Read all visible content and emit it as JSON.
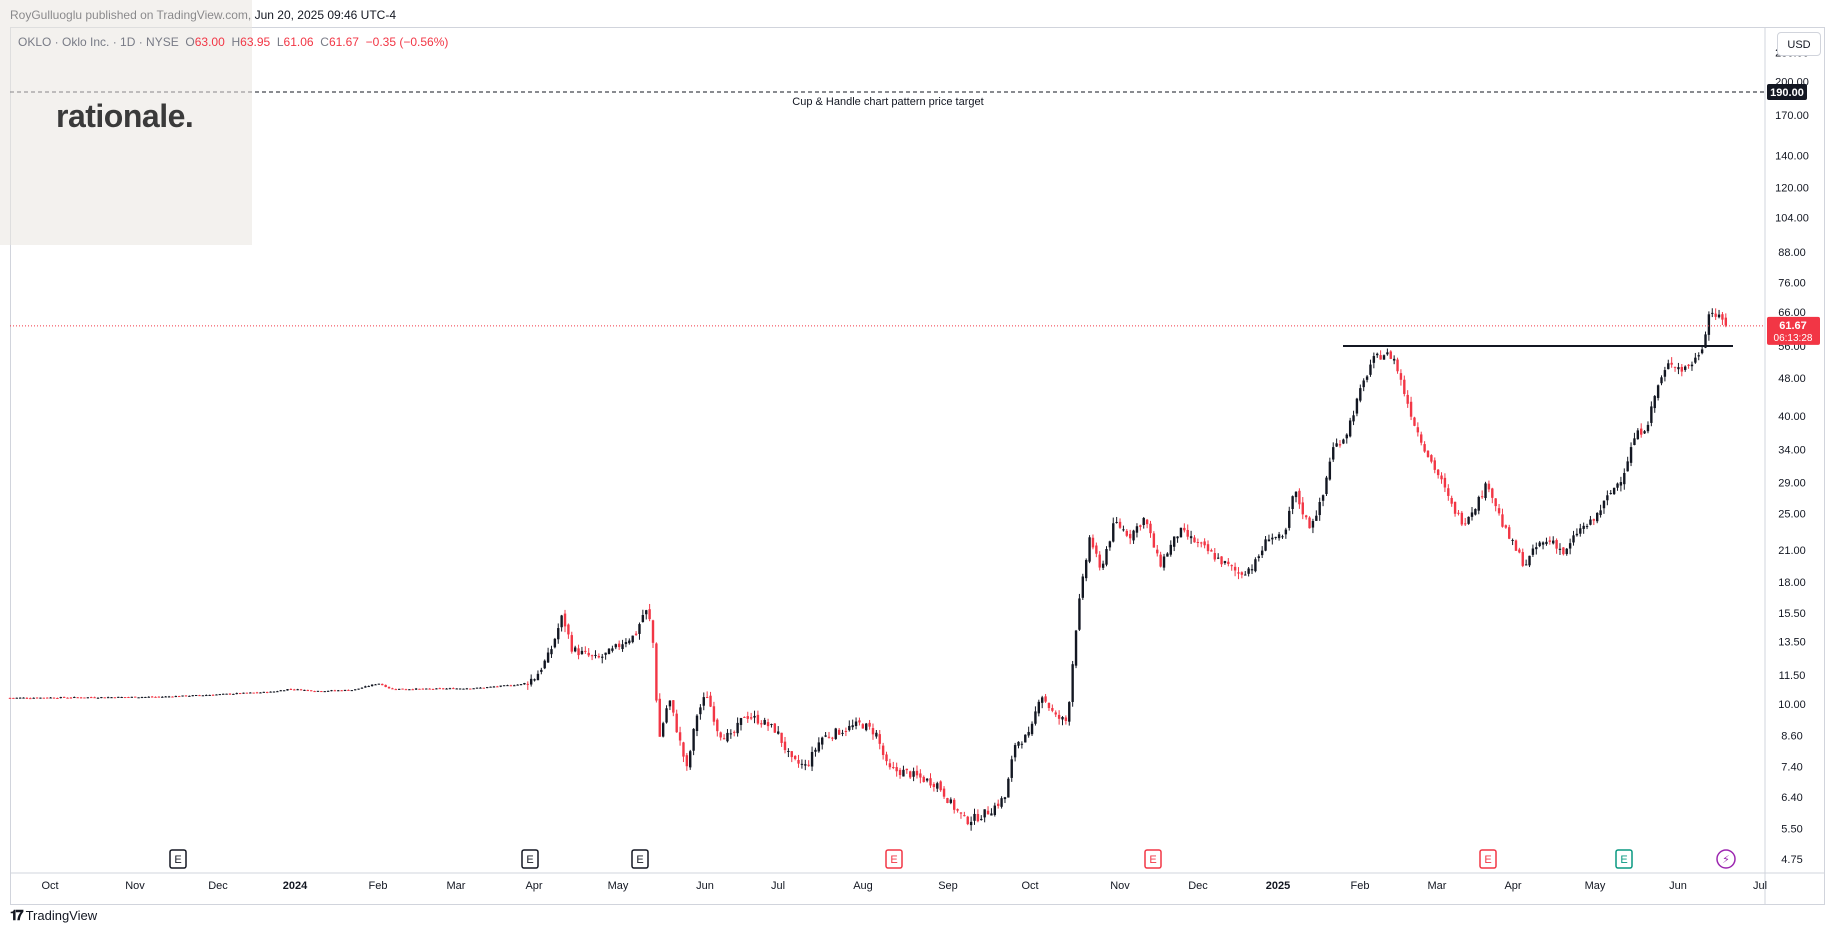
{
  "header": {
    "attribution": "RoyGulluoglu published on TradingView.com, Jun 20, 2025 09:46 UTC-4"
  },
  "legend": {
    "symbol": "OKLO · Oklo Inc. · 1D · NYSE",
    "open_label": "O",
    "open": "63.00",
    "high_label": "H",
    "high": "63.95",
    "low_label": "L",
    "low": "61.06",
    "close_label": "C",
    "close": "61.67",
    "change": "−0.35 (−0.56%)"
  },
  "watermark": {
    "text": "rationale."
  },
  "currency": "USD",
  "annotation": {
    "text": "Cup & Handle chart pattern price target"
  },
  "footer": {
    "brand": "TradingView"
  },
  "chart_data": {
    "type": "candlestick",
    "scale": "log",
    "ylim": [
      4.5,
      250
    ],
    "y_ticks": [
      "4.75",
      "5.50",
      "6.40",
      "7.40",
      "8.60",
      "10.00",
      "11.50",
      "13.50",
      "15.50",
      "18.00",
      "21.00",
      "25.00",
      "29.00",
      "34.00",
      "40.00",
      "48.00",
      "56.00",
      "66.00",
      "76.00",
      "88.00",
      "104.00",
      "120.00",
      "140.00",
      "170.00",
      "200.00",
      "230.00"
    ],
    "x_ticks": [
      "Oct",
      "Nov",
      "Dec",
      "2024",
      "Feb",
      "Mar",
      "Apr",
      "May",
      "Jun",
      "Jul",
      "Aug",
      "Sep",
      "Oct",
      "Nov",
      "Dec",
      "2025",
      "Feb",
      "Mar",
      "Apr",
      "May",
      "Jun",
      "Jul"
    ],
    "x_tick_bold": [
      "2024",
      "2025"
    ],
    "price_target": {
      "value": 190.0,
      "label": "190.00"
    },
    "resistance": {
      "value": 56.0
    },
    "last_price": {
      "value": 61.67,
      "label": "61.67",
      "countdown": "06:13:28"
    },
    "colors": {
      "up": "#131722",
      "down": "#f23645",
      "accent": "#f23645"
    },
    "events": [
      {
        "kind": "earnings",
        "label": "E",
        "color": "#131722",
        "month": "Nov 2023"
      },
      {
        "kind": "earnings",
        "label": "E",
        "color": "#131722",
        "month": "Apr 2024"
      },
      {
        "kind": "earnings",
        "label": "E",
        "color": "#131722",
        "month": "May 2024"
      },
      {
        "kind": "earnings",
        "label": "E",
        "color": "#f23645",
        "month": "Aug 2024"
      },
      {
        "kind": "earnings",
        "label": "E",
        "color": "#f23645",
        "month": "Nov 2024"
      },
      {
        "kind": "earnings",
        "label": "E",
        "color": "#f23645",
        "month": "Mar 2025"
      },
      {
        "kind": "earnings",
        "label": "E",
        "color": "#089981",
        "month": "May 2025"
      },
      {
        "kind": "flash",
        "label": "⚡",
        "color": "#9c27b0",
        "month": "Jun 2025"
      }
    ],
    "price_path": [
      {
        "t": 0,
        "p": 10.3
      },
      {
        "t": 150,
        "p": 10.35
      },
      {
        "t": 200,
        "p": 10.45
      },
      {
        "t": 240,
        "p": 10.55
      },
      {
        "t": 263,
        "p": 10.6
      },
      {
        "t": 280,
        "p": 10.75
      },
      {
        "t": 310,
        "p": 10.65
      },
      {
        "t": 345,
        "p": 10.7
      },
      {
        "t": 370,
        "p": 11.05
      },
      {
        "t": 383,
        "p": 10.75
      },
      {
        "t": 420,
        "p": 10.75
      },
      {
        "t": 470,
        "p": 10.8
      },
      {
        "t": 503,
        "p": 10.95
      },
      {
        "t": 515,
        "p": 11.0
      },
      {
        "t": 528,
        "p": 11.4
      },
      {
        "t": 542,
        "p": 12.7
      },
      {
        "t": 555,
        "p": 15.3
      },
      {
        "t": 565,
        "p": 13.0
      },
      {
        "t": 590,
        "p": 12.4
      },
      {
        "t": 605,
        "p": 12.9
      },
      {
        "t": 618,
        "p": 13.6
      },
      {
        "t": 628,
        "p": 13.9
      },
      {
        "t": 638,
        "p": 15.8
      },
      {
        "t": 645,
        "p": 14.5
      },
      {
        "t": 652,
        "p": 8.4
      },
      {
        "t": 662,
        "p": 10.3
      },
      {
        "t": 672,
        "p": 8.5
      },
      {
        "t": 680,
        "p": 7.3
      },
      {
        "t": 690,
        "p": 9.5
      },
      {
        "t": 700,
        "p": 10.5
      },
      {
        "t": 712,
        "p": 8.7
      },
      {
        "t": 725,
        "p": 8.5
      },
      {
        "t": 738,
        "p": 9.5
      },
      {
        "t": 755,
        "p": 9.2
      },
      {
        "t": 770,
        "p": 8.8
      },
      {
        "t": 785,
        "p": 7.6
      },
      {
        "t": 800,
        "p": 7.4
      },
      {
        "t": 815,
        "p": 8.5
      },
      {
        "t": 835,
        "p": 8.8
      },
      {
        "t": 855,
        "p": 9.1
      },
      {
        "t": 870,
        "p": 8.7
      },
      {
        "t": 882,
        "p": 7.3
      },
      {
        "t": 900,
        "p": 7.2
      },
      {
        "t": 915,
        "p": 7.0
      },
      {
        "t": 932,
        "p": 6.8
      },
      {
        "t": 945,
        "p": 6.2
      },
      {
        "t": 960,
        "p": 5.7
      },
      {
        "t": 972,
        "p": 5.8
      },
      {
        "t": 985,
        "p": 6.0
      },
      {
        "t": 1000,
        "p": 6.4
      },
      {
        "t": 1010,
        "p": 8.3
      },
      {
        "t": 1025,
        "p": 8.6
      },
      {
        "t": 1035,
        "p": 10.6
      },
      {
        "t": 1050,
        "p": 9.4
      },
      {
        "t": 1062,
        "p": 9.2
      },
      {
        "t": 1072,
        "p": 15.2
      },
      {
        "t": 1085,
        "p": 22.5
      },
      {
        "t": 1095,
        "p": 19.0
      },
      {
        "t": 1110,
        "p": 24.0
      },
      {
        "t": 1125,
        "p": 22.5
      },
      {
        "t": 1140,
        "p": 24.5
      },
      {
        "t": 1155,
        "p": 19.5
      },
      {
        "t": 1175,
        "p": 23.0
      },
      {
        "t": 1195,
        "p": 21.5
      },
      {
        "t": 1215,
        "p": 20.0
      },
      {
        "t": 1235,
        "p": 18.7
      },
      {
        "t": 1250,
        "p": 19.5
      },
      {
        "t": 1265,
        "p": 22.5
      },
      {
        "t": 1280,
        "p": 22.0
      },
      {
        "t": 1290,
        "p": 28.0
      },
      {
        "t": 1305,
        "p": 23.5
      },
      {
        "t": 1318,
        "p": 26.5
      },
      {
        "t": 1328,
        "p": 34.0
      },
      {
        "t": 1342,
        "p": 36.5
      },
      {
        "t": 1355,
        "p": 44.0
      },
      {
        "t": 1368,
        "p": 52.0
      },
      {
        "t": 1380,
        "p": 54.0
      },
      {
        "t": 1390,
        "p": 53.0
      },
      {
        "t": 1402,
        "p": 44.0
      },
      {
        "t": 1412,
        "p": 38.0
      },
      {
        "t": 1425,
        "p": 33.0
      },
      {
        "t": 1437,
        "p": 29.5
      },
      {
        "t": 1448,
        "p": 26.0
      },
      {
        "t": 1460,
        "p": 24.0
      },
      {
        "t": 1472,
        "p": 26.0
      },
      {
        "t": 1485,
        "p": 29.0
      },
      {
        "t": 1500,
        "p": 23.5
      },
      {
        "t": 1510,
        "p": 21.5
      },
      {
        "t": 1522,
        "p": 19.5
      },
      {
        "t": 1535,
        "p": 21.5
      },
      {
        "t": 1550,
        "p": 22.0
      },
      {
        "t": 1562,
        "p": 20.5
      },
      {
        "t": 1575,
        "p": 23.0
      },
      {
        "t": 1590,
        "p": 24.0
      },
      {
        "t": 1605,
        "p": 27.0
      },
      {
        "t": 1620,
        "p": 30.0
      },
      {
        "t": 1632,
        "p": 36.0
      },
      {
        "t": 1645,
        "p": 38.5
      },
      {
        "t": 1655,
        "p": 46.0
      },
      {
        "t": 1668,
        "p": 52.0
      },
      {
        "t": 1680,
        "p": 50.0
      },
      {
        "t": 1692,
        "p": 52.0
      },
      {
        "t": 1700,
        "p": 56.0
      },
      {
        "t": 1708,
        "p": 67.0
      },
      {
        "t": 1716,
        "p": 64.0
      },
      {
        "t": 1722,
        "p": 63.0
      },
      {
        "t": 1726,
        "p": 61.67
      }
    ]
  }
}
